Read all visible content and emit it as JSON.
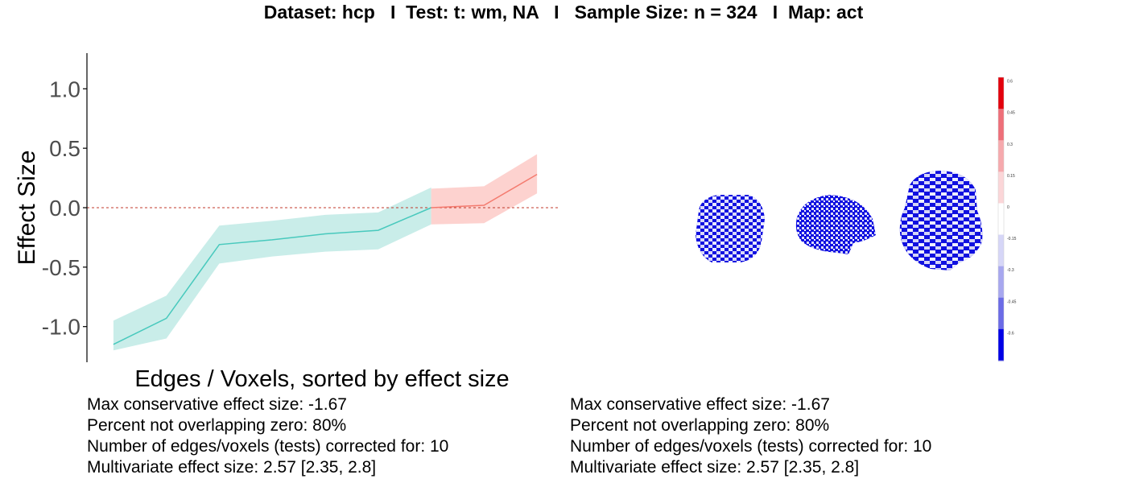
{
  "title": "Dataset: hcp   I  Test: t: wm, NA   I   Sample Size: n = 324   I  Map: act",
  "chart_data": {
    "type": "line",
    "xlabel": "Edges / Voxels, sorted by effect size",
    "ylabel": "Effect Size",
    "ylim": [
      -1.3,
      1.3
    ],
    "yticks": [
      "1.0",
      "0.5",
      "0.0",
      "-0.5",
      "-1.0"
    ],
    "ytick_values": [
      1.0,
      0.5,
      0.0,
      -0.5,
      -1.0
    ],
    "reference_line": 0,
    "series": [
      {
        "color": "#48c9bd",
        "band_color": "#c9ede9",
        "x": [
          1,
          2,
          3,
          4,
          5,
          6,
          7
        ],
        "y": [
          -1.15,
          -0.93,
          -0.31,
          -0.27,
          -0.22,
          -0.19,
          0.0
        ],
        "lower": [
          -1.2,
          -1.1,
          -0.47,
          -0.41,
          -0.37,
          -0.35,
          -0.14
        ],
        "upper": [
          -0.95,
          -0.74,
          -0.15,
          -0.11,
          -0.06,
          -0.04,
          0.17
        ]
      },
      {
        "color": "#f47b6f",
        "band_color": "#fdd2cf",
        "x": [
          7,
          8,
          9
        ],
        "y": [
          0.0,
          0.02,
          0.28
        ],
        "lower": [
          -0.14,
          -0.13,
          0.12
        ],
        "upper": [
          0.16,
          0.18,
          0.45
        ]
      }
    ],
    "colorbar": {
      "ticks": [
        "0.6",
        "0.45",
        "0.3",
        "0.15",
        "0",
        "-0.15",
        "-0.3",
        "-0.45",
        "-0.6"
      ],
      "colors": [
        "#e3000c",
        "#ee6f79",
        "#f6a9ad",
        "#fbd6d8",
        "#ffffff",
        "#d6d6f7",
        "#a7a7ef",
        "#6b6be6",
        "#0000e6"
      ]
    }
  },
  "stats_left": [
    "Max conservative effect size: -1.67",
    "Percent not overlapping zero: 80%",
    "Number of edges/voxels (tests) corrected for: 10",
    "Multivariate effect size: 2.57 [2.35, 2.8]"
  ],
  "stats_right": [
    "Max conservative effect size: -1.67",
    "Percent not overlapping zero: 80%",
    "Number of edges/voxels (tests) corrected for: 10",
    "Multivariate effect size: 2.57 [2.35, 2.8]"
  ]
}
